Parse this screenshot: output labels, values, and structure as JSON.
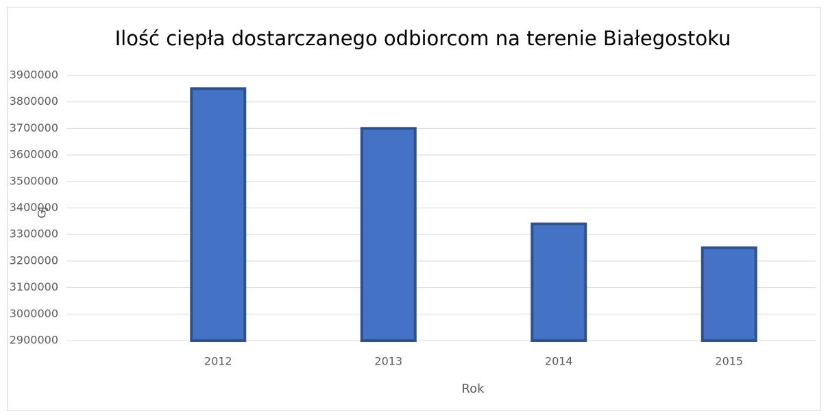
{
  "chart_data": {
    "type": "bar",
    "title": "Ilość ciepła dostarczanego odbiorcom na terenie Białegostoku",
    "x_label": "Rok",
    "y_label": "GJ",
    "categories": [
      "2012",
      "2013",
      "2014",
      "2015"
    ],
    "values": [
      3850000,
      3700000,
      3340000,
      3250000
    ],
    "color": "#4472c4",
    "ylim": [
      2900000,
      3900000
    ],
    "yticks": [
      2900000,
      3000000,
      3100000,
      3200000,
      3300000,
      3400000,
      3500000,
      3600000,
      3700000,
      3800000,
      3900000
    ],
    "grid": true
  }
}
